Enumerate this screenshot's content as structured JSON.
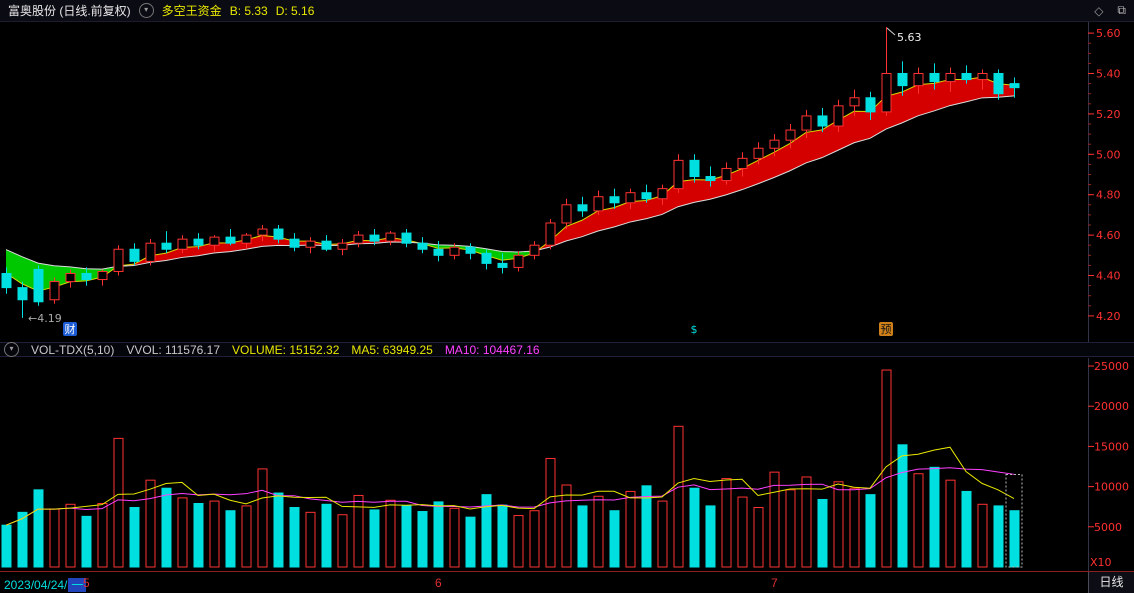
{
  "header": {
    "title": "富奥股份 (日线.前复权)",
    "indicator_name": "多空王资金",
    "b_value": "B: 5.33",
    "d_value": "D: 5.16",
    "diamond_icon": "◇",
    "window_icon": "⧉",
    "dropdown_glyph": "▾"
  },
  "volume_header": {
    "name": "VOL-TDX(5,10)",
    "vvol": "VVOL: 111576.17",
    "volume": "VOLUME: 15152.32",
    "ma5": "MA5: 63949.25",
    "ma10": "MA10: 104467.16",
    "dropdown_glyph": "▾"
  },
  "bottom_bar": {
    "date": "2023/04/24/",
    "weekday": "一",
    "period_label": "日线",
    "months": [
      {
        "label": "5",
        "index": 5
      },
      {
        "label": "6",
        "index": 27
      },
      {
        "label": "7",
        "index": 48
      }
    ]
  },
  "chart_data": {
    "type": "candlestick",
    "title": "富奥股份 日线 前复权",
    "y_ticks": [
      "5.60",
      "5.40",
      "5.20",
      "5.00",
      "4.80",
      "4.60",
      "4.40",
      "4.20"
    ],
    "ylim": [
      4.2,
      5.6
    ],
    "vol_ticks": [
      "25000",
      "20000",
      "15000",
      "10000",
      "5000"
    ],
    "vol_lim": [
      0,
      25500
    ],
    "scale_label": "X10",
    "candles": [
      [
        4.41,
        4.44,
        4.31,
        4.34
      ],
      [
        4.34,
        4.37,
        4.19,
        4.28
      ],
      [
        4.43,
        4.45,
        4.25,
        4.27
      ],
      [
        4.28,
        4.39,
        4.26,
        4.37
      ],
      [
        4.37,
        4.43,
        4.34,
        4.41
      ],
      [
        4.41,
        4.44,
        4.35,
        4.38
      ],
      [
        4.38,
        4.43,
        4.35,
        4.42
      ],
      [
        4.42,
        4.55,
        4.4,
        4.53
      ],
      [
        4.53,
        4.56,
        4.45,
        4.47
      ],
      [
        4.47,
        4.58,
        4.45,
        4.56
      ],
      [
        4.56,
        4.62,
        4.51,
        4.53
      ],
      [
        4.53,
        4.6,
        4.51,
        4.58
      ],
      [
        4.58,
        4.61,
        4.53,
        4.55
      ],
      [
        4.55,
        4.6,
        4.52,
        4.59
      ],
      [
        4.59,
        4.63,
        4.55,
        4.56
      ],
      [
        4.56,
        4.61,
        4.53,
        4.6
      ],
      [
        4.6,
        4.65,
        4.57,
        4.63
      ],
      [
        4.63,
        4.65,
        4.56,
        4.58
      ],
      [
        4.58,
        4.61,
        4.52,
        4.54
      ],
      [
        4.54,
        4.59,
        4.51,
        4.57
      ],
      [
        4.57,
        4.6,
        4.52,
        4.53
      ],
      [
        4.53,
        4.58,
        4.5,
        4.56
      ],
      [
        4.56,
        4.62,
        4.54,
        4.6
      ],
      [
        4.6,
        4.63,
        4.55,
        4.57
      ],
      [
        4.57,
        4.62,
        4.55,
        4.61
      ],
      [
        4.61,
        4.63,
        4.54,
        4.56
      ],
      [
        4.56,
        4.59,
        4.51,
        4.53
      ],
      [
        4.53,
        4.57,
        4.47,
        4.5
      ],
      [
        4.5,
        4.56,
        4.48,
        4.54
      ],
      [
        4.54,
        4.56,
        4.48,
        4.51
      ],
      [
        4.51,
        4.53,
        4.43,
        4.46
      ],
      [
        4.46,
        4.51,
        4.41,
        4.44
      ],
      [
        4.44,
        4.52,
        4.42,
        4.5
      ],
      [
        4.5,
        4.57,
        4.48,
        4.55
      ],
      [
        4.55,
        4.68,
        4.53,
        4.66
      ],
      [
        4.66,
        4.78,
        4.63,
        4.75
      ],
      [
        4.75,
        4.79,
        4.69,
        4.72
      ],
      [
        4.72,
        4.82,
        4.7,
        4.79
      ],
      [
        4.79,
        4.83,
        4.73,
        4.76
      ],
      [
        4.76,
        4.83,
        4.73,
        4.81
      ],
      [
        4.81,
        4.85,
        4.76,
        4.78
      ],
      [
        4.78,
        4.85,
        4.75,
        4.83
      ],
      [
        4.83,
        5.0,
        4.81,
        4.97
      ],
      [
        4.97,
        5.0,
        4.86,
        4.89
      ],
      [
        4.89,
        4.94,
        4.84,
        4.87
      ],
      [
        4.87,
        4.96,
        4.85,
        4.93
      ],
      [
        4.93,
        5.01,
        4.89,
        4.98
      ],
      [
        4.98,
        5.06,
        4.95,
        5.03
      ],
      [
        5.03,
        5.1,
        4.99,
        5.07
      ],
      [
        5.07,
        5.15,
        5.03,
        5.12
      ],
      [
        5.12,
        5.22,
        5.08,
        5.19
      ],
      [
        5.19,
        5.23,
        5.11,
        5.14
      ],
      [
        5.14,
        5.27,
        5.11,
        5.24
      ],
      [
        5.24,
        5.32,
        5.19,
        5.28
      ],
      [
        5.28,
        5.31,
        5.17,
        5.21
      ],
      [
        5.21,
        5.63,
        5.19,
        5.4
      ],
      [
        5.4,
        5.46,
        5.29,
        5.34
      ],
      [
        5.34,
        5.43,
        5.3,
        5.4
      ],
      [
        5.4,
        5.45,
        5.32,
        5.36
      ],
      [
        5.36,
        5.43,
        5.31,
        5.4
      ],
      [
        5.4,
        5.44,
        5.35,
        5.37
      ],
      [
        5.37,
        5.42,
        5.32,
        5.4
      ],
      [
        5.4,
        5.42,
        5.27,
        5.3
      ],
      [
        5.35,
        5.38,
        5.28,
        5.33
      ]
    ],
    "volumes": [
      5200,
      6800,
      9600,
      7200,
      7800,
      6300,
      7900,
      16000,
      7400,
      10800,
      9800,
      8600,
      7900,
      8200,
      7000,
      7600,
      12200,
      9200,
      7400,
      6800,
      7800,
      6500,
      8900,
      7100,
      8300,
      7600,
      6900,
      8100,
      7300,
      6200,
      9000,
      7700,
      6400,
      7000,
      13500,
      10200,
      7600,
      8800,
      7000,
      9400,
      10100,
      8200,
      17500,
      9800,
      7600,
      11000,
      8700,
      7400,
      11800,
      9600,
      11200,
      8400,
      10600,
      9800,
      9000,
      24500,
      15200,
      11600,
      12400,
      10800,
      9400,
      7800,
      7600,
      7000
    ],
    "band": {
      "fast_period": 4,
      "slow_period": 13,
      "fast_seed": 4.46,
      "slow_seed": 4.56,
      "bull_color": "#d40000",
      "bear_color": "#00c800",
      "fast_line": "#d8d800",
      "slow_line": "#dcdcdc"
    },
    "colors": {
      "up": "#ff3232",
      "down": "#00e0e0",
      "ma5": "#e8e800",
      "ma10": "#ff40ff",
      "axis_text": "#ff3030"
    },
    "high_annotation": {
      "index": 55,
      "price": 5.63,
      "label": "5.63"
    },
    "low_annotation": {
      "index": 1,
      "price": 4.19,
      "label": "←4.19"
    },
    "markers": [
      {
        "label": "财",
        "index": 4,
        "bg": "#1b5cd6",
        "fg": "#ffffff"
      },
      {
        "label": "$",
        "index": 43,
        "bg": "",
        "fg": "#00e0e0"
      },
      {
        "label": "预",
        "index": 55,
        "bg": "#d08019",
        "fg": "#141414"
      }
    ],
    "cursor": {
      "index": 63,
      "top_value": 11500
    }
  }
}
